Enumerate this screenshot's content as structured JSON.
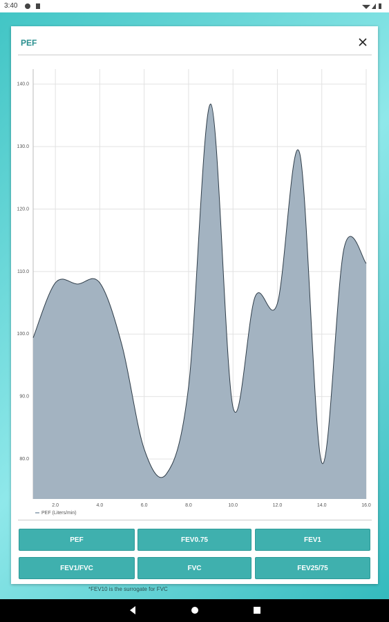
{
  "status_bar": {
    "time": "3:40"
  },
  "dialog": {
    "title": "PEF"
  },
  "chart_data": {
    "type": "area",
    "x": [
      1,
      2,
      3,
      4,
      5,
      6,
      7,
      8,
      9,
      10,
      11,
      12,
      13,
      14,
      15,
      16
    ],
    "series": [
      {
        "name": "PEF (Liters/min)",
        "color": "#a3b3c1",
        "values": [
          99.4,
          108.2,
          108.0,
          108.2,
          98.2,
          81.6,
          77.6,
          91.6,
          136.8,
          88.3,
          106.0,
          104.9,
          129.0,
          79.4,
          113.7,
          111.3
        ]
      }
    ],
    "line_color": "#2e3c48",
    "xlim": [
      1,
      16
    ],
    "xticks": [
      {
        "value": 2,
        "label": "2.0"
      },
      {
        "value": 4,
        "label": "4.0"
      },
      {
        "value": 6,
        "label": "6.0"
      },
      {
        "value": 8,
        "label": "8.0"
      },
      {
        "value": 10,
        "label": "10.0"
      },
      {
        "value": 12,
        "label": "12.0"
      },
      {
        "value": 14,
        "label": "14.0"
      },
      {
        "value": 16,
        "label": "16.0"
      }
    ],
    "ylim": [
      73.6,
      142.4
    ],
    "yticks": [
      {
        "value": 80,
        "label": "80.0"
      },
      {
        "value": 90,
        "label": "90.0"
      },
      {
        "value": 100,
        "label": "100.0"
      },
      {
        "value": 110,
        "label": "110.0"
      },
      {
        "value": 120,
        "label": "120.0"
      },
      {
        "value": 130,
        "label": "130.0"
      },
      {
        "value": 140,
        "label": "140.0"
      }
    ],
    "grid": true
  },
  "buttons": [
    "PEF",
    "FEV0.75",
    "FEV1",
    "FEV1/FVC",
    "FVC",
    "FEV25/75"
  ],
  "footnote": "*FEV10 is the surrogate for FVC"
}
